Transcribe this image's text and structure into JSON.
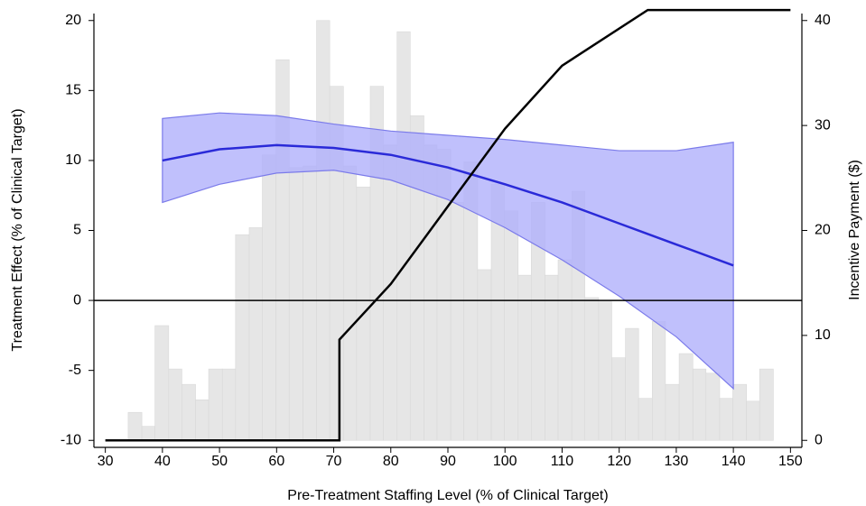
{
  "chart_data": {
    "type": "combo",
    "xlabel": "Pre-Treatment Staffing Level (% of Clinical Target)",
    "ylabel": "Treatment Effect (% of Clinical Target)",
    "y2label": "Incentive Payment ($)",
    "xlim": [
      28,
      152
    ],
    "ylim": [
      -10.5,
      20.5
    ],
    "y2lim": [
      -0.667,
      40.667
    ],
    "xticks": [
      30,
      40,
      50,
      60,
      70,
      80,
      90,
      100,
      110,
      120,
      130,
      140,
      150
    ],
    "yticks": [
      -10,
      -5,
      0,
      5,
      10,
      15,
      20
    ],
    "y2ticks": [
      0,
      10,
      20,
      30,
      40
    ],
    "hline": 0,
    "histogram": {
      "color": "#e6e6e6",
      "bins": [
        34.0,
        36.4,
        38.7,
        41.1,
        43.4,
        45.8,
        48.1,
        50.5,
        52.8,
        55.2,
        57.5,
        59.9,
        62.2,
        64.6,
        67.0,
        69.3,
        71.7,
        74.0,
        76.4,
        78.7,
        81.1,
        83.4,
        85.8,
        88.1,
        90.5,
        92.8,
        95.2,
        97.6,
        99.9,
        102.3,
        104.6,
        107.0,
        109.3,
        111.7,
        114.0,
        116.4,
        118.7,
        121.1,
        123.4,
        125.8,
        128.1,
        130.5,
        132.9,
        135.2,
        137.6,
        139.9,
        142.3,
        144.6,
        147.0
      ],
      "values": [
        -8,
        -9,
        -1.8,
        -4.9,
        -6,
        -7.1,
        -4.9,
        -4.9,
        4.7,
        5.2,
        10.4,
        17.2,
        9.5,
        9.6,
        20,
        15.3,
        9.6,
        8.1,
        15.3,
        11.1,
        19.2,
        13.2,
        11.1,
        10.8,
        7,
        9.9,
        2.2,
        8.3,
        6.4,
        1.8,
        7,
        1.8,
        2.9,
        7.8,
        0.2,
        -0.1,
        -4.1,
        -2,
        -7,
        -1.5,
        -6,
        -3.8,
        -4.9,
        -5.2,
        -7,
        -6,
        -7.2,
        -4.9
      ]
    },
    "band": {
      "color": "#b0b0fb",
      "edge": "#7b7bea",
      "x": [
        40,
        50,
        60,
        70,
        80,
        90,
        100,
        110,
        120,
        130,
        140
      ],
      "upper": [
        13,
        13.4,
        13.2,
        12.6,
        12.1,
        11.8,
        11.5,
        11.1,
        10.7,
        10.7,
        11.3
      ],
      "lower": [
        7.0,
        8.3,
        9.1,
        9.3,
        8.6,
        7.2,
        5.2,
        2.9,
        0.3,
        -2.6,
        -6.3
      ]
    },
    "series": [
      {
        "color": "#2a2ad8",
        "x": [
          40,
          50,
          60,
          70,
          80,
          90,
          100,
          110,
          120,
          130,
          140
        ],
        "values": [
          10,
          10.8,
          11.1,
          10.9,
          10.4,
          9.5,
          8.3,
          7.0,
          5.5,
          4.0,
          2.5
        ]
      },
      {
        "color": "#000000",
        "axis": "y2",
        "x": [
          30,
          71,
          71,
          80,
          100,
          110,
          125,
          150
        ],
        "values": [
          0,
          0,
          9.6,
          14.9,
          29.7,
          35.7,
          41,
          41
        ]
      }
    ]
  }
}
